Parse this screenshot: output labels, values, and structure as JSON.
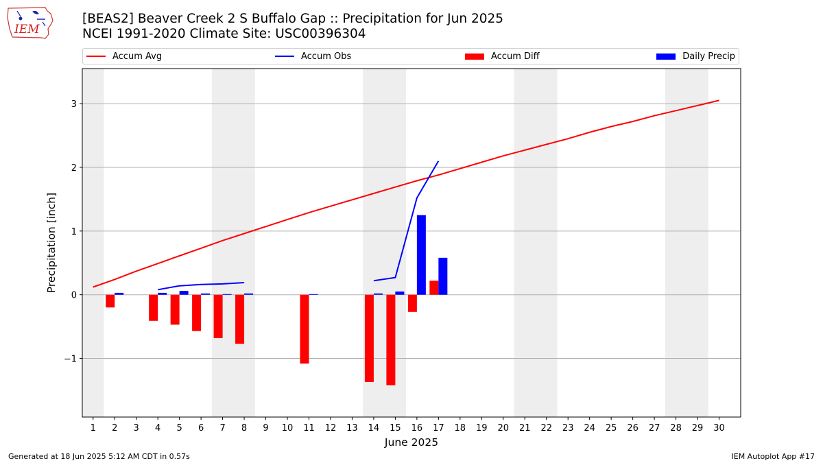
{
  "header": {
    "title_line1": "[BEAS2] Beaver Creek 2 S Buffalo Gap :: Precipitation for Jun 2025",
    "title_line2": "NCEI 1991-2020 Climate Site: USC00396304"
  },
  "logo": {
    "text": "IEM",
    "icon": "iowa-state-outline-with-weather-icons"
  },
  "legend": [
    {
      "label": "Accum Avg",
      "kind": "line",
      "color": "#ff0000"
    },
    {
      "label": "Accum Obs",
      "kind": "line",
      "color": "#0000ff"
    },
    {
      "label": "Accum Diff",
      "kind": "bar",
      "color": "#ff0000"
    },
    {
      "label": "Daily Precip",
      "kind": "bar",
      "color": "#0000ff"
    }
  ],
  "footer": {
    "left": "Generated at 18 Jun 2025 5:12 AM CDT in 0.57s",
    "right": "IEM Autoplot App #17"
  },
  "chart_data": {
    "type": "bar",
    "xlabel": "June 2025",
    "ylabel": "Precipitation [inch]",
    "xlim": [
      0.5,
      31.0
    ],
    "ylim": [
      -1.92,
      3.55
    ],
    "x_ticks": [
      1,
      2,
      3,
      4,
      5,
      6,
      7,
      8,
      9,
      10,
      11,
      12,
      13,
      14,
      15,
      16,
      17,
      18,
      19,
      20,
      21,
      22,
      23,
      24,
      25,
      26,
      27,
      28,
      29,
      30
    ],
    "y_ticks": [
      -1,
      0,
      1,
      2,
      3
    ],
    "y_tick_labels": [
      "−1",
      "0",
      "1",
      "2",
      "3"
    ],
    "grid": "horizontal",
    "weekend_shading_days": [
      [
        0.5,
        1.5
      ],
      [
        6.5,
        8.5
      ],
      [
        13.5,
        15.5
      ],
      [
        20.5,
        22.5
      ],
      [
        27.5,
        29.5
      ]
    ],
    "weekend_shading_color": "#eeeeee",
    "series": [
      {
        "name": "Accum Avg",
        "type": "line",
        "color": "#ff0000",
        "x": [
          1,
          2,
          3,
          4,
          5,
          6,
          7,
          8,
          9,
          10,
          11,
          12,
          13,
          14,
          15,
          16,
          17,
          18,
          19,
          20,
          21,
          22,
          23,
          24,
          25,
          26,
          27,
          28,
          29,
          30
        ],
        "values": [
          0.12,
          0.24,
          0.37,
          0.49,
          0.61,
          0.73,
          0.85,
          0.96,
          1.07,
          1.18,
          1.29,
          1.39,
          1.49,
          1.59,
          1.69,
          1.79,
          1.88,
          1.98,
          2.08,
          2.18,
          2.27,
          2.36,
          2.45,
          2.55,
          2.64,
          2.72,
          2.81,
          2.89,
          2.97,
          3.05
        ]
      },
      {
        "name": "Accum Obs",
        "type": "line",
        "color": "#0000ff",
        "x": [
          4,
          5,
          6,
          7,
          8,
          null,
          14,
          15,
          16,
          17
        ],
        "values": [
          0.08,
          0.14,
          0.16,
          0.17,
          0.19,
          null,
          0.22,
          0.27,
          1.52,
          2.1
        ]
      },
      {
        "name": "Accum Diff",
        "type": "bar",
        "color": "#ff0000",
        "x": [
          2,
          4,
          5,
          6,
          7,
          8,
          11,
          14,
          15,
          16,
          17
        ],
        "values": [
          -0.2,
          -0.41,
          -0.47,
          -0.57,
          -0.68,
          -0.77,
          -1.08,
          -1.37,
          -1.42,
          -0.27,
          0.22
        ]
      },
      {
        "name": "Daily Precip",
        "type": "bar",
        "color": "#0000ff",
        "x": [
          2,
          4,
          5,
          6,
          7,
          8,
          11,
          14,
          15,
          16,
          17
        ],
        "values": [
          0.03,
          0.03,
          0.06,
          0.02,
          0.01,
          0.02,
          0.01,
          0.02,
          0.05,
          1.25,
          0.58
        ]
      }
    ]
  }
}
